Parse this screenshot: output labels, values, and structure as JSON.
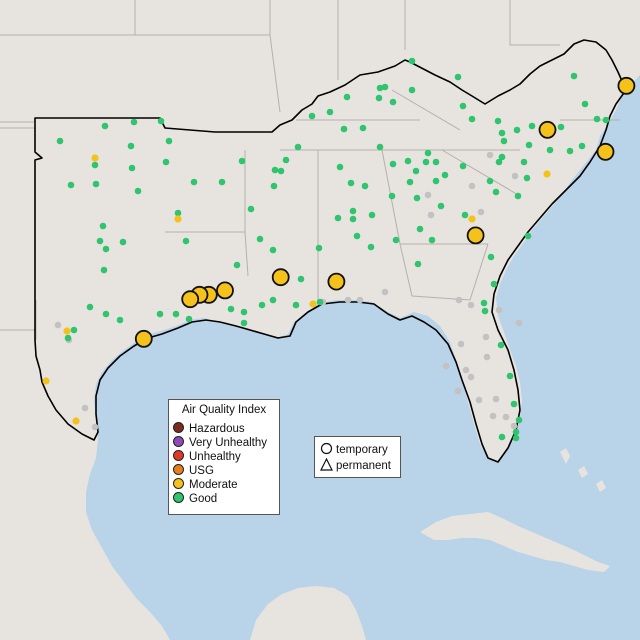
{
  "legend": {
    "title": "Air Quality Index",
    "categories": [
      {
        "label": "Hazardous",
        "color": "#7e2b1f"
      },
      {
        "label": "Very Unhealthy",
        "color": "#8e4bb3"
      },
      {
        "label": "Unhealthy",
        "color": "#e0392a"
      },
      {
        "label": "USG",
        "color": "#e87d1e"
      },
      {
        "label": "Moderate",
        "color": "#f4c21b"
      },
      {
        "label": "Good",
        "color": "#2fc46e"
      }
    ],
    "monitor_types": [
      {
        "label": "temporary",
        "shape": "circle"
      },
      {
        "label": "permanent",
        "shape": "triangle"
      }
    ]
  },
  "colors": {
    "land": "#e7e4e0",
    "water": "#b9d3e8",
    "no_data": "#c2c2c2",
    "region_outline": "#000000",
    "state_border": "#b4b0ac"
  },
  "monitors": [
    {
      "aqi": "Moderate",
      "type": "temporary",
      "lon": -76.6,
      "lat": 39.3
    },
    {
      "aqi": "Moderate",
      "type": "temporary",
      "lon": -80.0,
      "lat": 37.3
    },
    {
      "aqi": "Moderate",
      "type": "temporary",
      "lon": -77.5,
      "lat": 36.3
    },
    {
      "aqi": "Moderate",
      "type": "temporary",
      "lon": -83.1,
      "lat": 32.5
    },
    {
      "aqi": "Moderate",
      "type": "temporary",
      "lon": -91.5,
      "lat": 30.6
    },
    {
      "aqi": "Moderate",
      "type": "temporary",
      "lon": -89.1,
      "lat": 30.4
    },
    {
      "aqi": "Moderate",
      "type": "temporary",
      "lon": -93.9,
      "lat": 30.0
    },
    {
      "aqi": "Moderate",
      "type": "temporary",
      "lon": -94.6,
      "lat": 29.8
    },
    {
      "aqi": "Moderate",
      "type": "temporary",
      "lon": -95.0,
      "lat": 29.8
    },
    {
      "aqi": "Moderate",
      "type": "temporary",
      "lon": -95.4,
      "lat": 29.6
    },
    {
      "aqi": "Moderate",
      "type": "temporary",
      "lon": -97.4,
      "lat": 27.8
    }
  ]
}
